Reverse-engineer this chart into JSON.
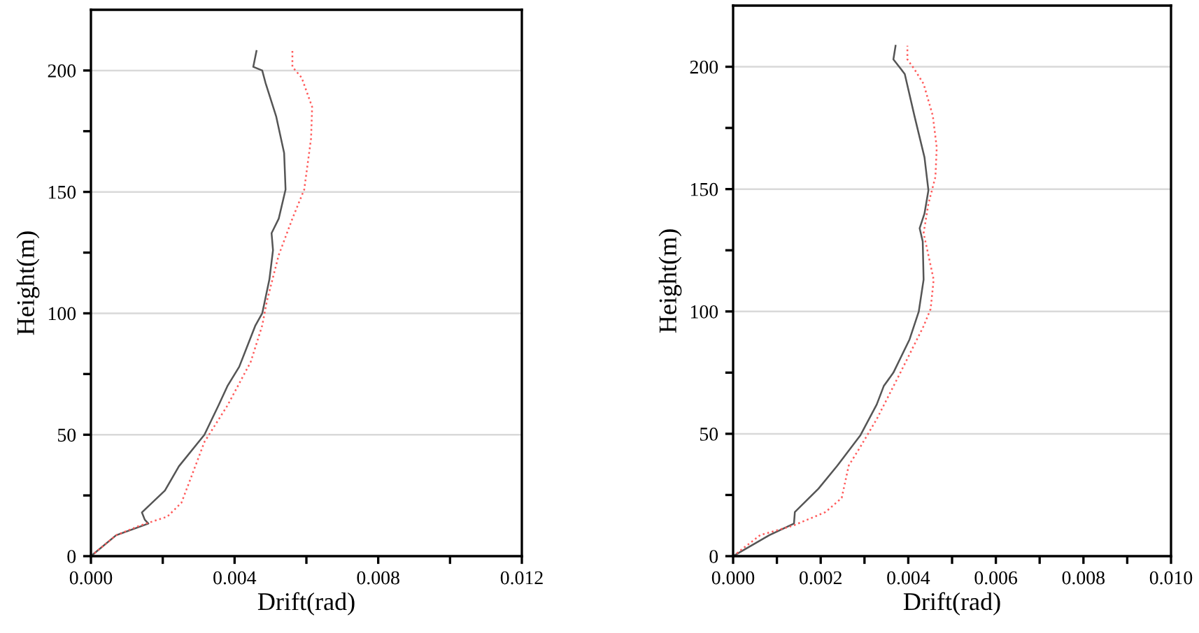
{
  "chart_data": [
    {
      "type": "line",
      "xlabel": "Drift(rad)",
      "ylabel": "Height(m)",
      "xlim": [
        0,
        0.012
      ],
      "ylim": [
        0,
        225
      ],
      "xticks": [
        {
          "value": 0,
          "label": "0.000"
        },
        {
          "value": 0.002,
          "label": null
        },
        {
          "value": 0.004,
          "label": "0.004"
        },
        {
          "value": 0.006,
          "label": null
        },
        {
          "value": 0.008,
          "label": "0.008"
        },
        {
          "value": 0.01,
          "label": null
        },
        {
          "value": 0.012,
          "label": "0.012"
        }
      ],
      "yticks": [
        0,
        {
          "value": 25,
          "label": null
        },
        50,
        {
          "value": 75,
          "label": null
        },
        100,
        {
          "value": 125,
          "label": null
        },
        150,
        {
          "value": 175,
          "label": null
        },
        200
      ],
      "grid": "y",
      "series": [
        {
          "color": "#555555",
          "line_style": "solid",
          "x": [
            0,
            0.0007,
            0.0016,
            0.0015,
            0.00142,
            0.00206,
            0.00245,
            0.00316,
            0.00355,
            0.0038,
            0.00413,
            0.00458,
            0.00477,
            0.00497,
            0.00507,
            0.00503,
            0.00523,
            0.00542,
            0.00538,
            0.00516,
            0.00486,
            0.00477,
            0.00452,
            0.00461
          ],
          "values": [
            0,
            8.6,
            13.4,
            15,
            18,
            27,
            37,
            50,
            62,
            70,
            78,
            95,
            100,
            114,
            126,
            133,
            139,
            151,
            166,
            181,
            195,
            200,
            201.5,
            208
          ]
        },
        {
          "color": "#ff5a5a",
          "line_style": "dotted",
          "x": [
            0,
            0.0007,
            0.00135,
            0.00213,
            0.00252,
            0.00277,
            0.00316,
            0.0038,
            0.00445,
            0.00477,
            0.0049,
            0.00523,
            0.00561,
            0.00594,
            0.00613,
            0.00616,
            0.00587,
            0.00561,
            0.00561
          ],
          "values": [
            0,
            8.6,
            12.5,
            16.3,
            22,
            31.7,
            47,
            62,
            80,
            95,
            105,
            124,
            139,
            151,
            172,
            185,
            197,
            201.5,
            208
          ]
        }
      ]
    },
    {
      "type": "line",
      "xlabel": "Drift(rad)",
      "ylabel": "Height(m)",
      "xlim": [
        0,
        0.01
      ],
      "ylim": [
        0,
        225
      ],
      "xticks": [
        {
          "value": 0,
          "label": "0.000"
        },
        {
          "value": 0.001,
          "label": null
        },
        {
          "value": 0.002,
          "label": "0.002"
        },
        {
          "value": 0.003,
          "label": null
        },
        {
          "value": 0.004,
          "label": "0.004"
        },
        {
          "value": 0.005,
          "label": null
        },
        {
          "value": 0.006,
          "label": "0.006"
        },
        {
          "value": 0.007,
          "label": null
        },
        {
          "value": 0.008,
          "label": "0.008"
        },
        {
          "value": 0.009,
          "label": null
        },
        {
          "value": 0.01,
          "label": "0.010"
        }
      ],
      "yticks": [
        0,
        {
          "value": 25,
          "label": null
        },
        50,
        {
          "value": 75,
          "label": null
        },
        100,
        {
          "value": 125,
          "label": null
        },
        150,
        {
          "value": 175,
          "label": null
        },
        200
      ],
      "grid": "y",
      "series": [
        {
          "color": "#555555",
          "line_style": "solid",
          "x": [
            0,
            0.00083,
            0.00139,
            0.00141,
            0.00195,
            0.00238,
            0.00291,
            0.00328,
            0.00344,
            0.00366,
            0.00403,
            0.00424,
            0.00435,
            0.00433,
            0.00426,
            0.00437,
            0.00446,
            0.00437,
            0.00414,
            0.00392,
            0.00382,
            0.00366,
            0.00371
          ],
          "values": [
            0,
            8.6,
            13.3,
            18,
            27.6,
            37,
            49.5,
            62,
            69.5,
            75,
            88.6,
            100,
            113,
            128.6,
            134,
            140,
            149.5,
            163,
            180,
            197,
            199.4,
            203,
            208.6
          ]
        },
        {
          "color": "#ff5a5a",
          "line_style": "dotted",
          "x": [
            0,
            0.00062,
            0.00136,
            0.00211,
            0.00248,
            0.00264,
            0.00291,
            0.00328,
            0.00382,
            0.00435,
            0.00451,
            0.00458,
            0.00446,
            0.00435,
            0.00446,
            0.00462,
            0.00465,
            0.00456,
            0.00435,
            0.00414,
            0.00398,
            0.00398
          ],
          "values": [
            0,
            8.6,
            12.4,
            18,
            23.8,
            37,
            44.8,
            56,
            75,
            94,
            101,
            113,
            123,
            132,
            144,
            155,
            167,
            180,
            193,
            199,
            203,
            208.6
          ]
        }
      ]
    }
  ]
}
